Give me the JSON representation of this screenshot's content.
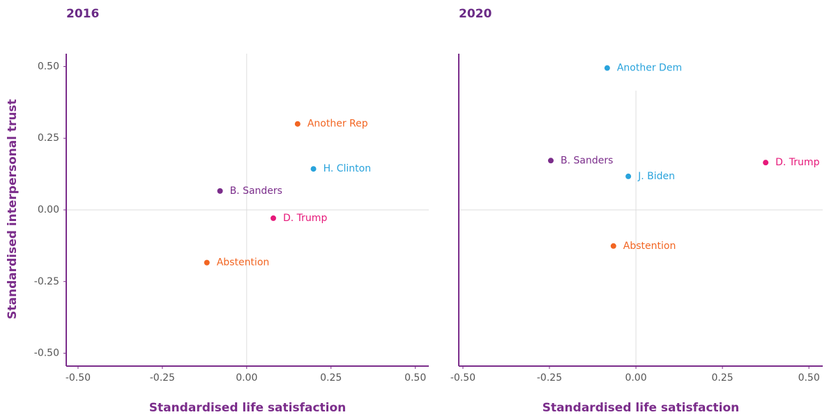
{
  "chart_data": [
    {
      "type": "scatter",
      "title": "2016",
      "xlabel": "Standardised life satisfaction",
      "ylabel": "Standardised interpersonal trust",
      "xlim": [
        -0.535,
        0.54
      ],
      "ylim": [
        -0.545,
        0.545
      ],
      "xticks": [
        {
          "value": -0.5,
          "label": "-0.50"
        },
        {
          "value": -0.25,
          "label": "-0.25"
        },
        {
          "value": 0,
          "label": "0.00"
        },
        {
          "value": 0.25,
          "label": "0.25"
        },
        {
          "value": 0.5,
          "label": "0.50"
        }
      ],
      "yticks": [
        {
          "value": 0.5,
          "label": "0.50"
        },
        {
          "value": 0.25,
          "label": "0.25"
        },
        {
          "value": 0,
          "label": "0.00"
        },
        {
          "value": -0.25,
          "label": "-0.25"
        },
        {
          "value": -0.5,
          "label": "-0.50"
        }
      ],
      "series": [
        {
          "name": "Another Rep",
          "color": "#f26522",
          "x": [
            0.151
          ],
          "values": [
            0.3
          ]
        },
        {
          "name": "H. Clinton",
          "color": "#29a3dc",
          "x": [
            0.198
          ],
          "values": [
            0.143
          ]
        },
        {
          "name": "B. Sanders",
          "color": "#7b2d8b",
          "x": [
            -0.079
          ],
          "values": [
            0.066
          ]
        },
        {
          "name": "D. Trump",
          "color": "#e6197a",
          "x": [
            0.079
          ],
          "values": [
            -0.029
          ]
        },
        {
          "name": "Abstention",
          "color": "#f26522",
          "x": [
            -0.118
          ],
          "values": [
            -0.184
          ]
        }
      ]
    },
    {
      "type": "scatter",
      "title": "2020",
      "xlabel": "Standardised life satisfaction",
      "xlim": [
        -0.512,
        0.54
      ],
      "ylim": [
        -0.545,
        0.545
      ],
      "xticks": [
        {
          "value": -0.5,
          "label": "-0.50"
        },
        {
          "value": -0.25,
          "label": "-0.25"
        },
        {
          "value": 0,
          "label": "0.00"
        },
        {
          "value": 0.25,
          "label": "0.25"
        },
        {
          "value": 0.5,
          "label": "0.50"
        }
      ],
      "series": [
        {
          "name": "Another Dem",
          "color": "#29a3dc",
          "x": [
            -0.083
          ],
          "values": [
            0.495
          ]
        },
        {
          "name": "B. Sanders",
          "color": "#7b2d8b",
          "x": [
            -0.246
          ],
          "values": [
            0.172
          ]
        },
        {
          "name": "D. Trump",
          "color": "#e6197a",
          "x": [
            0.375
          ],
          "values": [
            0.165
          ]
        },
        {
          "name": "J. Biden",
          "color": "#29a3dc",
          "x": [
            -0.022
          ],
          "values": [
            0.117
          ]
        },
        {
          "name": "Abstention",
          "color": "#f26522",
          "x": [
            -0.065
          ],
          "values": [
            -0.126
          ]
        }
      ]
    }
  ]
}
